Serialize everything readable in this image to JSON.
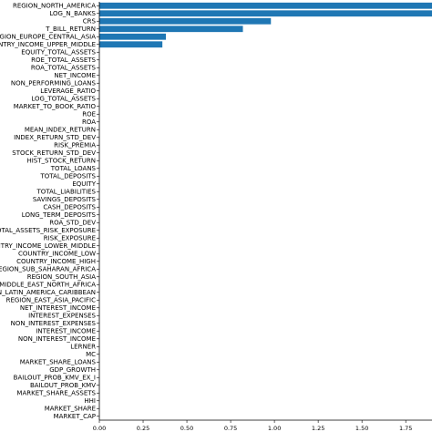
{
  "chart_data": {
    "type": "bar",
    "orientation": "horizontal",
    "title": "",
    "xlabel": "",
    "ylabel": "",
    "xlim": [
      0,
      1.9
    ],
    "x_ticks": [
      0.0,
      0.25,
      0.5,
      0.75,
      1.0,
      1.25,
      1.5,
      1.75
    ],
    "x_tick_labels": [
      "0.00",
      "0.25",
      "0.50",
      "0.75",
      "1.00",
      "1.25",
      "1.50",
      "1.75"
    ],
    "grid": false,
    "bar_color": "#1f77b4",
    "categories": [
      "REGION_NORTH_AMERICA",
      "LOG_N_BANKS",
      "CRS",
      "T_BILL_RETURN",
      "REGION_EUROPE_CENTRAL_ASIA",
      "COUNTRY_INCOME_UPPER_MIDDLE",
      "EQUITY_TOTAL_ASSETS",
      "ROE_TOTAL_ASSETS",
      "ROA_TOTAL_ASSETS",
      "NET_INCOME",
      "NON_PERFORMING_LOANS",
      "LEVERAGE_RATIO",
      "LOG_TOTAL_ASSETS",
      "MARKET_TO_BOOK_RATIO",
      "ROE",
      "ROA",
      "MEAN_INDEX_RETURN",
      "INDEX_RETURN_STD_DEV",
      "RISK_PREMIA",
      "STOCK_RETURN_STD_DEV",
      "HIST_STOCK_RETURN",
      "TOTAL_LOANS",
      "TOTAL_DEPOSITS",
      "EQUITY",
      "TOTAL_LIABILITIES",
      "SAVINGS_DEPOSITS",
      "CASH_DEPOSITS",
      "LONG_TERM_DEPOSITS",
      "ROA_STD_DEV",
      "TOTAL_ASSETS_RISK_EXPOSURE",
      "RISK_EXPOSURE",
      "COUNTRY_INCOME_LOWER_MIDDLE",
      "COUNTRY_INCOME_LOW",
      "COUNTRY_INCOME_HIGH",
      "REGION_SUB_SAHARAN_AFRICA",
      "REGION_SOUTH_ASIA",
      "REGION_MIDDLE_EAST_NORTH_AFRICA",
      "REGION_LATIN_AMERICA_CARIBBEAN",
      "REGION_EAST_ASIA_PACIFIC",
      "NET_INTEREST_INCOME",
      "INTEREST_EXPENSES",
      "NON_INTEREST_EXPENSES",
      "INTEREST_INCOME",
      "NON_INTEREST_INCOME",
      "LERNER",
      "MC",
      "MARKET_SHARE_LOANS",
      "GDP_GROWTH",
      "BAILOUT_PROB_KMV_EX_I",
      "BAILOUT_PROB_KMV",
      "MARKET_SHARE_ASSETS",
      "HHI",
      "MARKET_SHARE",
      "MARKET_CAP"
    ],
    "values": [
      1.9,
      1.9,
      0.98,
      0.82,
      0.38,
      0.36,
      0,
      0,
      0,
      0,
      0,
      0,
      0,
      0,
      0,
      0,
      0,
      0,
      0,
      0,
      0,
      0,
      0,
      0,
      0,
      0,
      0,
      0,
      0,
      0,
      0,
      0,
      0,
      0,
      0,
      0,
      0,
      0,
      0,
      0,
      0,
      0,
      0,
      0,
      0,
      0,
      0,
      0,
      0,
      0,
      0,
      0,
      0,
      0
    ]
  }
}
